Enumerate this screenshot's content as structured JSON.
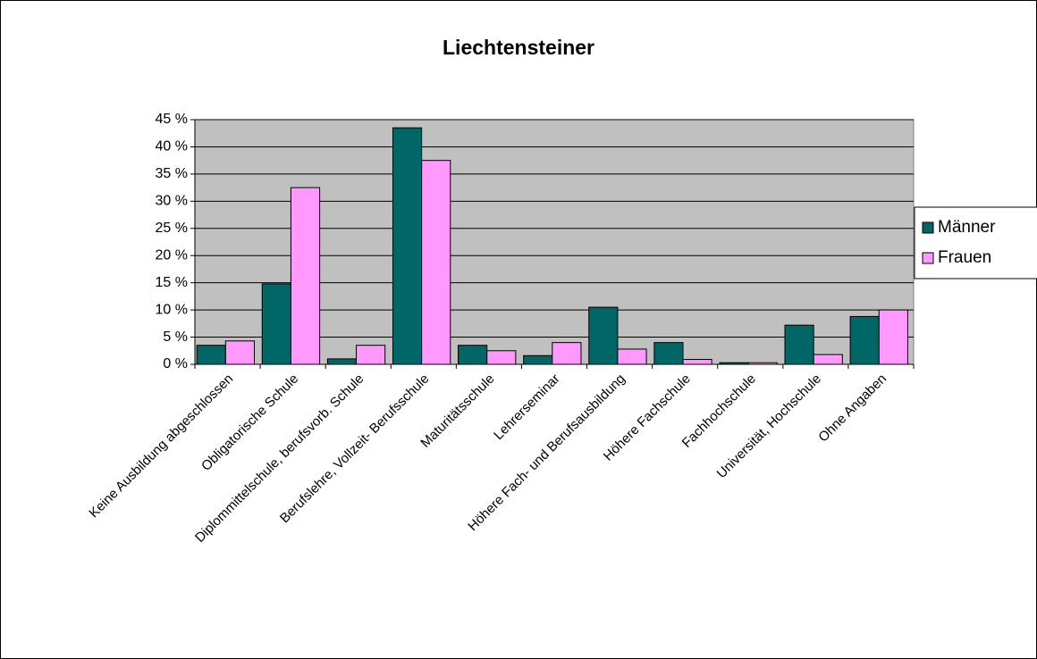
{
  "chart_data": {
    "type": "bar",
    "title": "Liechtensteiner",
    "categories": [
      "Keine Ausbildung abgeschlossen",
      "Obligatorische Schule",
      "Diplommittelschule, berufsvorb. Schule",
      "Berufslehre, Vollzeit- Berufsschule",
      "Maturitätsschule",
      "Lehrerseminar",
      "Höhere Fach- und Berufsausbildung",
      "Höhere Fachschule",
      "Fachhochschule",
      "Universität, Hochschule",
      "Ohne Angaben"
    ],
    "series": [
      {
        "name": "Männer",
        "color": "#006666",
        "values": [
          3.5,
          14.8,
          1.0,
          43.5,
          3.5,
          1.6,
          10.5,
          4.0,
          0.3,
          7.2,
          8.8
        ]
      },
      {
        "name": "Frauen",
        "color": "#ff99ff",
        "values": [
          4.3,
          32.5,
          3.5,
          37.5,
          2.5,
          4.0,
          2.8,
          0.9,
          0.3,
          1.8,
          10.0
        ]
      }
    ],
    "ylim": [
      0,
      45
    ],
    "yticks": [
      {
        "value": 0,
        "label": "0 %"
      },
      {
        "value": 5,
        "label": "5 %"
      },
      {
        "value": 10,
        "label": "10 %"
      },
      {
        "value": 15,
        "label": "15 %"
      },
      {
        "value": 20,
        "label": "20 %"
      },
      {
        "value": 25,
        "label": "25 %"
      },
      {
        "value": 30,
        "label": "30 %"
      },
      {
        "value": 35,
        "label": "35 %"
      },
      {
        "value": 40,
        "label": "40 %"
      },
      {
        "value": 45,
        "label": "45 %"
      }
    ],
    "grid": true,
    "legend": "right",
    "plot_background": "#c0c0c0"
  }
}
